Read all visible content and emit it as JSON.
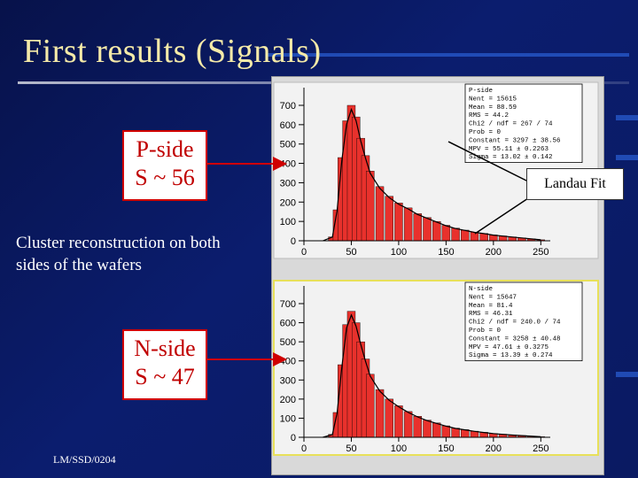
{
  "slide": {
    "title": "First results (Signals)",
    "caption": "Cluster reconstruction on both sides of the wafers",
    "footer": "LM/SSD/0204",
    "landau_label": "Landau Fit"
  },
  "boxes": {
    "p_side": {
      "line1": "P-side",
      "line2": "S ~ 56"
    },
    "n_side": {
      "line1": "N-side",
      "line2": "S ~ 47"
    }
  },
  "colors": {
    "background": "#0b1d6e",
    "title": "#f5eaa8",
    "box_border": "#d00000",
    "box_text": "#c00000",
    "hist_fill": "#e8312c",
    "plot_bg": "#d9d9d9"
  },
  "chart_data": [
    {
      "type": "bar",
      "title": "",
      "panel": "P-side",
      "xlim": [
        0,
        260
      ],
      "ylim": [
        0,
        700
      ],
      "x_ticks": [
        "0",
        "50",
        "100",
        "150",
        "200",
        "250"
      ],
      "y_ticks": [
        "0",
        "100",
        "200",
        "300",
        "400",
        "500",
        "600",
        "700"
      ],
      "bin_centers": [
        20,
        30,
        35,
        40,
        45,
        50,
        55,
        60,
        65,
        70,
        80,
        90,
        100,
        110,
        120,
        130,
        140,
        150,
        160,
        170,
        180,
        190,
        200,
        210,
        220,
        230,
        240,
        250
      ],
      "values": [
        0,
        20,
        160,
        430,
        620,
        700,
        640,
        530,
        440,
        360,
        280,
        230,
        195,
        170,
        140,
        120,
        100,
        80,
        65,
        55,
        45,
        38,
        30,
        25,
        20,
        15,
        10,
        5
      ],
      "stats": [
        "P-side",
        "Nent = 15615",
        "Mean = 88.59",
        "RMS = 44.2",
        "Chi2 / ndf = 267 / 74",
        "Prob = 0",
        "Constant = 3297 ± 38.56",
        "MPV = 55.11 ± 0.2263",
        "Sigma = 13.02 ± 0.142"
      ]
    },
    {
      "type": "bar",
      "title": "",
      "panel": "N-side",
      "xlim": [
        0,
        260
      ],
      "ylim": [
        0,
        700
      ],
      "x_ticks": [
        "0",
        "50",
        "100",
        "150",
        "200",
        "250"
      ],
      "y_ticks": [
        "0",
        "100",
        "200",
        "300",
        "400",
        "500",
        "600",
        "700"
      ],
      "bin_centers": [
        20,
        30,
        35,
        40,
        45,
        50,
        55,
        60,
        65,
        70,
        80,
        90,
        100,
        110,
        120,
        130,
        140,
        150,
        160,
        170,
        180,
        190,
        200,
        210,
        220,
        230,
        240,
        250
      ],
      "values": [
        0,
        15,
        130,
        380,
        590,
        660,
        600,
        500,
        410,
        330,
        250,
        200,
        165,
        135,
        110,
        90,
        75,
        60,
        48,
        40,
        32,
        26,
        20,
        16,
        12,
        9,
        6,
        3
      ],
      "stats": [
        "N-side",
        "Nent = 15647",
        "Mean = 81.4",
        "RMS = 46.31",
        "Chi2 / ndf = 240.0 / 74",
        "Prob = 0",
        "Constant = 3258 ± 40.48",
        "MPV = 47.61 ± 0.3275",
        "Sigma = 13.39 ± 0.274"
      ]
    }
  ]
}
